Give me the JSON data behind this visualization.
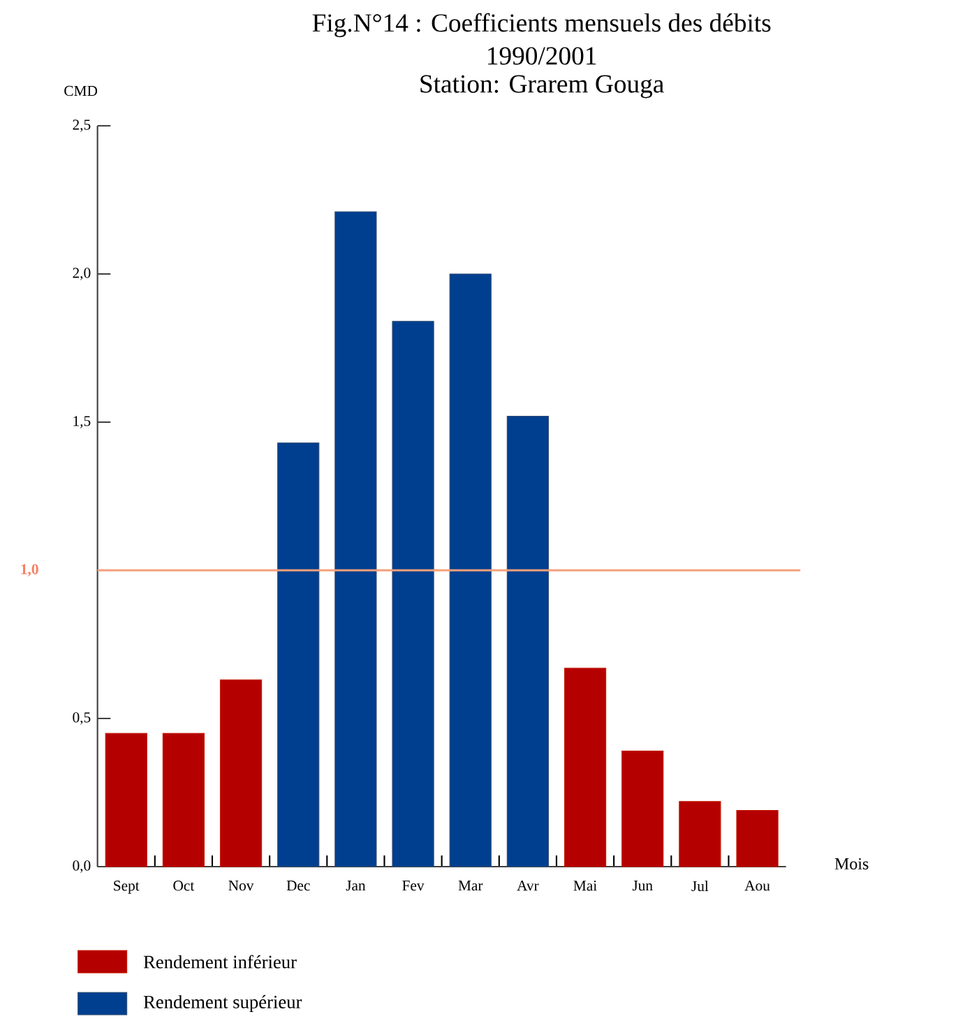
{
  "chart_data": {
    "type": "bar",
    "title": "Fig.N°14 : Coefficients mensuels des débits",
    "subtitle": "1990/2001",
    "annotations": [
      "Station: Grarem Gouga"
    ],
    "ylabel": "CMD",
    "xlabel": "Mois",
    "categories": [
      "Sept",
      "Oct",
      "Nov",
      "Dec",
      "Jan",
      "Fev",
      "Mar",
      "Avr",
      "Mai",
      "Jun",
      "Jul",
      "Aou"
    ],
    "series": [
      {
        "name": "Rendement inférieur",
        "color": "#b50000",
        "values": [
          0.45,
          0.45,
          0.63,
          null,
          null,
          null,
          null,
          null,
          0.67,
          0.39,
          0.22,
          0.19
        ]
      },
      {
        "name": "Rendement supérieur",
        "color": "#003f8f",
        "values": [
          null,
          null,
          null,
          1.43,
          2.21,
          1.84,
          2.0,
          1.52,
          null,
          null,
          null,
          null
        ]
      }
    ],
    "ylim": [
      0,
      2.5
    ],
    "yticks": [
      {
        "value": 0,
        "label": "0,0"
      },
      {
        "value": 0.5,
        "label": "0,5"
      },
      {
        "value": 1.5,
        "label": "1,5"
      },
      {
        "value": 2,
        "label": "2,0"
      },
      {
        "value": 2.5,
        "label": "2,5"
      }
    ],
    "ref_lines": [
      {
        "axis": "y",
        "value": 1.0,
        "label": "1,0",
        "color": "#f4a07a"
      }
    ],
    "legend": "bottom left"
  }
}
